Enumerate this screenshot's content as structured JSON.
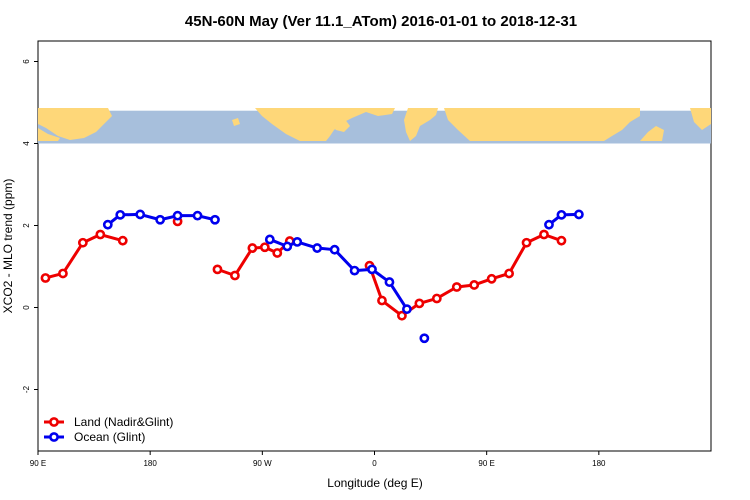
{
  "chart_data": {
    "type": "line",
    "title": "45N-60N May (Ver 11.1_ATom)   2016-01-01 to 2018-12-31",
    "xlabel": "Longitude (deg E)",
    "ylabel": "XCO2 - MLO trend (ppm)",
    "xlim": [
      -90,
      180
    ],
    "ylim": [
      -3.5,
      6.5
    ],
    "x_ticks": [
      {
        "value": -90,
        "label": "90 E"
      },
      {
        "value": -45,
        "label": "180"
      },
      {
        "value": 0,
        "label": "90 W"
      },
      {
        "value": 45,
        "label": "0"
      },
      {
        "value": 90,
        "label": "90 E"
      },
      {
        "value": 135,
        "label": "180"
      }
    ],
    "y_ticks": [
      -2,
      0,
      2,
      4,
      6
    ],
    "map_band": {
      "y_range": [
        4,
        4.8
      ],
      "ocean_color": "#a7bfdc",
      "land_color": "#fed779"
    },
    "series": [
      {
        "name": "Land (Nadir&Glint)",
        "color": "#ee0000",
        "segments": [
          {
            "x": [
              -87,
              -80,
              -72,
              -65,
              -56
            ],
            "y": [
              0.72,
              0.83,
              1.58,
              1.78,
              1.63
            ]
          },
          {
            "x": [
              -34
            ],
            "y": [
              2.1
            ]
          },
          {
            "x": [
              -18,
              -11,
              -4,
              1,
              6,
              11
            ],
            "y": [
              0.93,
              0.78,
              1.45,
              1.47,
              1.33,
              1.62
            ]
          },
          {
            "x": [
              43,
              48,
              56,
              63,
              70,
              78,
              85,
              92,
              99,
              106,
              113,
              120
            ],
            "y": [
              1.02,
              0.17,
              -0.2,
              0.1,
              0.22,
              0.5,
              0.55,
              0.7,
              0.83,
              1.58,
              1.78,
              1.63
            ]
          }
        ]
      },
      {
        "name": "Ocean (Glint)",
        "color": "#0000ee",
        "segments": [
          {
            "x": [
              -62,
              -57,
              -49,
              -41,
              -34,
              -26,
              -19
            ],
            "y": [
              2.02,
              2.26,
              2.27,
              2.14,
              2.24,
              2.24,
              2.14
            ]
          },
          {
            "x": [
              3,
              10,
              14,
              22,
              29,
              37,
              44,
              51,
              58
            ],
            "y": [
              1.66,
              1.49,
              1.6,
              1.45,
              1.41,
              0.9,
              0.93,
              0.62,
              -0.04
            ]
          },
          {
            "x": [
              65
            ],
            "y": [
              -0.75
            ]
          },
          {
            "x": [
              115,
              120,
              127
            ],
            "y": [
              2.02,
              2.26,
              2.27
            ]
          }
        ]
      }
    ],
    "legend": {
      "position": "bottom-left"
    },
    "grid": false
  }
}
